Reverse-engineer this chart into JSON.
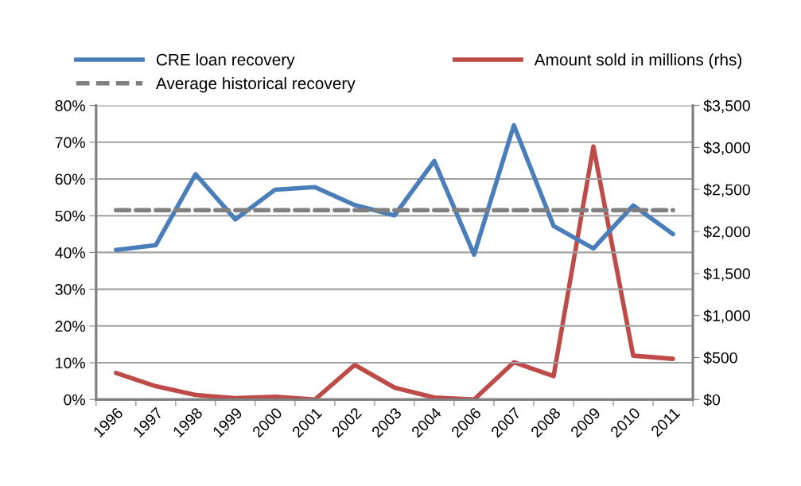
{
  "chart_data": {
    "type": "line",
    "categories": [
      "1996",
      "1997",
      "1998",
      "1999",
      "2000",
      "2001",
      "2002",
      "2003",
      "2004",
      "2006",
      "2007",
      "2008",
      "2009",
      "2010",
      "2011"
    ],
    "series": [
      {
        "name": "CRE loan recovery",
        "color": "#4a7ebb",
        "values": [
          40.7,
          42.0,
          61.3,
          49.0,
          57.1,
          57.8,
          52.9,
          50.1,
          64.9,
          39.4,
          74.6,
          47.2,
          41.1,
          52.8,
          45.0
        ]
      },
      {
        "name": "Average historical recovery",
        "color": "#808080",
        "line_style": "dashed",
        "values": [
          51.5,
          51.5,
          51.5,
          51.5,
          51.5,
          51.5,
          51.5,
          51.5,
          51.5,
          51.5,
          51.5,
          51.5,
          51.5,
          51.5,
          51.5
        ]
      },
      {
        "name": "Amount sold in millions (rhs)",
        "color": "#be4b48",
        "axis": "y2",
        "values": [
          317,
          158,
          54,
          16,
          32,
          0,
          412,
          142,
          23,
          0,
          443,
          279,
          3012,
          522,
          484
        ]
      }
    ],
    "ylim": [
      0,
      80
    ],
    "yticks": [
      {
        "value": 0,
        "label": "0%"
      },
      {
        "value": 10,
        "label": "10%"
      },
      {
        "value": 20,
        "label": "20%"
      },
      {
        "value": 30,
        "label": "30%"
      },
      {
        "value": 40,
        "label": "40%"
      },
      {
        "value": 50,
        "label": "50%"
      },
      {
        "value": 60,
        "label": "60%"
      },
      {
        "value": 70,
        "label": "70%"
      },
      {
        "value": 80,
        "label": "80%"
      }
    ],
    "y2lim": [
      0,
      3500
    ],
    "y2ticks": [
      {
        "value": 0,
        "label": "$0"
      },
      {
        "value": 500,
        "label": "$500"
      },
      {
        "value": 1000,
        "label": "$1,000"
      },
      {
        "value": 1500,
        "label": "$1,500"
      },
      {
        "value": 2000,
        "label": "$2,000"
      },
      {
        "value": 2500,
        "label": "$2,500"
      },
      {
        "value": 3000,
        "label": "$3,000"
      },
      {
        "value": 3500,
        "label": "$3,500"
      }
    ],
    "grid": "y",
    "legend": "top",
    "marker": "none",
    "line_style": "solid"
  }
}
